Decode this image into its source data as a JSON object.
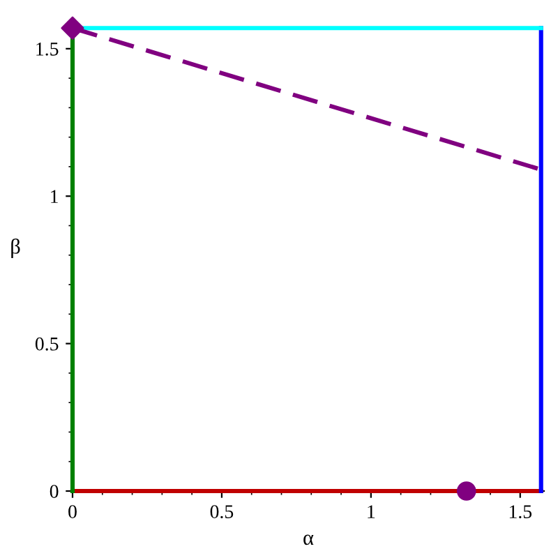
{
  "chart_data": {
    "type": "line",
    "xlabel": "α",
    "ylabel": "β",
    "xlim": [
      0,
      1.58
    ],
    "ylim": [
      0,
      1.58
    ],
    "xticks": [
      0,
      0.5,
      1,
      1.5
    ],
    "yticks": [
      0,
      0.5,
      1,
      1.5
    ],
    "grid": false,
    "legend": false,
    "series": [
      {
        "color": "#c00000",
        "x": [
          0,
          1.57
        ],
        "values": [
          0,
          0
        ],
        "line_style": "solid",
        "marker": "none"
      },
      {
        "color": "#0000ff",
        "x": [
          1.57,
          1.57
        ],
        "values": [
          0,
          1.57
        ],
        "line_style": "solid",
        "marker": "none"
      },
      {
        "color": "#00ffff",
        "x": [
          0,
          1.57
        ],
        "values": [
          1.57,
          1.57
        ],
        "line_style": "solid",
        "marker": "none"
      },
      {
        "color": "#008000",
        "x": [
          0,
          0
        ],
        "values": [
          0,
          1.57
        ],
        "line_style": "solid",
        "marker": "none"
      },
      {
        "color": "#800080",
        "x": [
          0,
          1.57
        ],
        "values": [
          1.57,
          1.09
        ],
        "line_style": "dashed",
        "marker": "none"
      },
      {
        "type": "scatter",
        "color": "#800080",
        "x": [
          0
        ],
        "values": [
          1.57
        ],
        "marker": "diamond"
      },
      {
        "type": "scatter",
        "color": "#800080",
        "x": [
          1.32
        ],
        "values": [
          0
        ],
        "marker": "circle"
      }
    ]
  }
}
